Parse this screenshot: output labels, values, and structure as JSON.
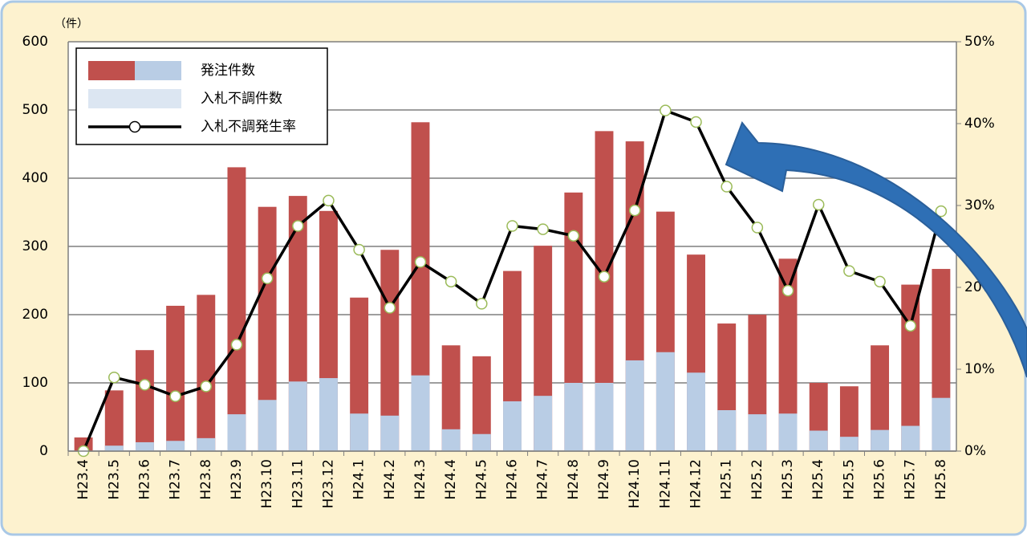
{
  "chart_data": {
    "type": "bar-line",
    "y_label": "（件）",
    "categories": [
      "H23.4",
      "H23.5",
      "H23.6",
      "H23.7",
      "H23.8",
      "H23.9",
      "H23.10",
      "H23.11",
      "H23.12",
      "H24.1",
      "H24.2",
      "H24.3",
      "H24.4",
      "H24.5",
      "H24.6",
      "H24.7",
      "H24.8",
      "H24.9",
      "H24.10",
      "H24.11",
      "H24.12",
      "H25.1",
      "H25.2",
      "H25.3",
      "H25.4",
      "H25.5",
      "H25.6",
      "H25.7",
      "H25.8"
    ],
    "series": [
      {
        "name": "発注件数",
        "type": "bar",
        "color": "#c0504d",
        "values": [
          20,
          89,
          148,
          213,
          229,
          416,
          358,
          374,
          352,
          225,
          295,
          482,
          155,
          139,
          264,
          301,
          379,
          469,
          454,
          351,
          288,
          187,
          200,
          282,
          100,
          95,
          155,
          244,
          267
        ]
      },
      {
        "name": "入札不調件数",
        "type": "bar",
        "color": "#b9cde5",
        "values": [
          0,
          8,
          13,
          15,
          19,
          54,
          75,
          102,
          107,
          55,
          52,
          111,
          32,
          25,
          73,
          81,
          100,
          100,
          133,
          145,
          115,
          60,
          54,
          55,
          30,
          21,
          31,
          37,
          78
        ]
      },
      {
        "name": "入札不調発生率",
        "type": "line",
        "axis": "y2",
        "color": "#000000",
        "values": [
          0,
          9.0,
          8.1,
          6.7,
          7.9,
          13.0,
          21.1,
          27.5,
          30.6,
          24.6,
          17.5,
          23.1,
          20.7,
          18.0,
          27.5,
          27.1,
          26.3,
          21.3,
          29.4,
          41.6,
          40.2,
          32.3,
          27.3,
          19.6,
          30.1,
          22.0,
          20.7,
          15.3,
          29.3
        ]
      }
    ],
    "ylim": [
      0,
      600
    ],
    "yticks": [
      0,
      100,
      200,
      300,
      400,
      500,
      600
    ],
    "y2lim": [
      0,
      50
    ],
    "y2ticks": [
      {
        "value": 0,
        "label": "0%"
      },
      {
        "value": 10,
        "label": "10%"
      },
      {
        "value": 20,
        "label": "20%"
      },
      {
        "value": 30,
        "label": "30%"
      },
      {
        "value": 40,
        "label": "40%"
      },
      {
        "value": 50,
        "label": "50%"
      }
    ],
    "grid": true,
    "legend": "upper left"
  }
}
